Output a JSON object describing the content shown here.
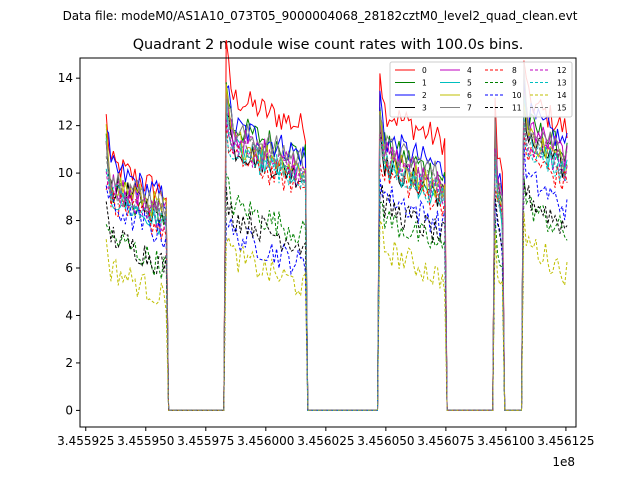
{
  "chart_data": {
    "type": "line",
    "suptitle": "Data file: modeM0/AS1A10_073T05_9000004068_28182cztM0_level2_quad_clean.evt",
    "title": "Quadrant 2 module wise count rates with 100.0s bins.",
    "xlabel": "",
    "ylabel": "",
    "x_offset_label": "1e8",
    "xlim": [
      3.4559226,
      3.4561292
    ],
    "ylim": [
      -0.7,
      14.85
    ],
    "x_ticks": [
      3.455925,
      3.45595,
      3.455975,
      3.456,
      3.456025,
      3.45605,
      3.456075,
      3.4561,
      3.456125
    ],
    "x_tick_labels": [
      "3.455925",
      "3.455950",
      "3.455975",
      "3.456000",
      "3.456025",
      "3.456050",
      "3.456075",
      "3.456100",
      "3.456125"
    ],
    "y_ticks": [
      0,
      2,
      4,
      6,
      8,
      10,
      12,
      14
    ],
    "y_tick_labels": [
      "0",
      "2",
      "4",
      "6",
      "8",
      "10",
      "12",
      "14"
    ],
    "grid": false,
    "legend_position": "top-right",
    "bin_width_1e8": 1e-06,
    "segments": [
      {
        "start": 3.4559335,
        "end": 3.4559585
      },
      {
        "start": 3.4559835,
        "end": 3.4560165
      },
      {
        "start": 3.4560475,
        "end": 3.4560745
      },
      {
        "start": 3.4560955,
        "end": 3.4560985
      },
      {
        "start": 3.4561075,
        "end": 3.4561255
      }
    ],
    "series": [
      {
        "name": "0",
        "color": "#ff0000",
        "dashed": false,
        "levels": [
          9.3,
          12.1,
          11.5,
          10.0,
          12.0
        ]
      },
      {
        "name": "1",
        "color": "#008000",
        "dashed": false,
        "levels": [
          8.3,
          10.9,
          10.0,
          9.0,
          11.0
        ]
      },
      {
        "name": "2",
        "color": "#0000ff",
        "dashed": false,
        "levels": [
          9.1,
          10.9,
          10.3,
          9.3,
          11.4
        ]
      },
      {
        "name": "3",
        "color": "#000000",
        "dashed": false,
        "levels": [
          8.4,
          10.0,
          9.2,
          8.4,
          10.3
        ]
      },
      {
        "name": "4",
        "color": "#bf00bf",
        "dashed": false,
        "levels": [
          8.5,
          10.4,
          9.7,
          8.8,
          10.9
        ]
      },
      {
        "name": "5",
        "color": "#00bfbf",
        "dashed": false,
        "levels": [
          7.9,
          9.9,
          9.1,
          8.2,
          10.2
        ]
      },
      {
        "name": "6",
        "color": "#bfbf00",
        "dashed": false,
        "levels": [
          8.6,
          10.3,
          9.5,
          8.6,
          10.5
        ]
      },
      {
        "name": "7",
        "color": "#808080",
        "dashed": false,
        "levels": [
          8.8,
          10.7,
          10.0,
          9.0,
          11.1
        ]
      },
      {
        "name": "8",
        "color": "#ff0000",
        "dashed": true,
        "levels": [
          7.8,
          9.6,
          8.9,
          8.0,
          9.7
        ]
      },
      {
        "name": "9",
        "color": "#008000",
        "dashed": true,
        "levels": [
          6.2,
          7.6,
          7.0,
          6.3,
          7.6
        ]
      },
      {
        "name": "10",
        "color": "#0000ff",
        "dashed": true,
        "levels": [
          7.5,
          6.3,
          8.0,
          7.2,
          8.7
        ]
      },
      {
        "name": "11",
        "color": "#000000",
        "dashed": true,
        "levels": [
          6.3,
          7.1,
          7.5,
          6.8,
          7.9
        ]
      },
      {
        "name": "12",
        "color": "#bf00bf",
        "dashed": true,
        "levels": [
          8.2,
          10.1,
          9.4,
          8.5,
          10.3
        ]
      },
      {
        "name": "13",
        "color": "#00bfbf",
        "dashed": true,
        "levels": [
          8.0,
          9.9,
          9.2,
          8.3,
          10.1
        ]
      },
      {
        "name": "14",
        "color": "#bfbf00",
        "dashed": true,
        "levels": [
          4.9,
          5.4,
          5.7,
          5.1,
          6.0
        ]
      },
      {
        "name": "15",
        "color": "#808080",
        "dashed": true,
        "levels": [
          8.3,
          10.2,
          9.5,
          8.6,
          10.4
        ]
      }
    ]
  }
}
